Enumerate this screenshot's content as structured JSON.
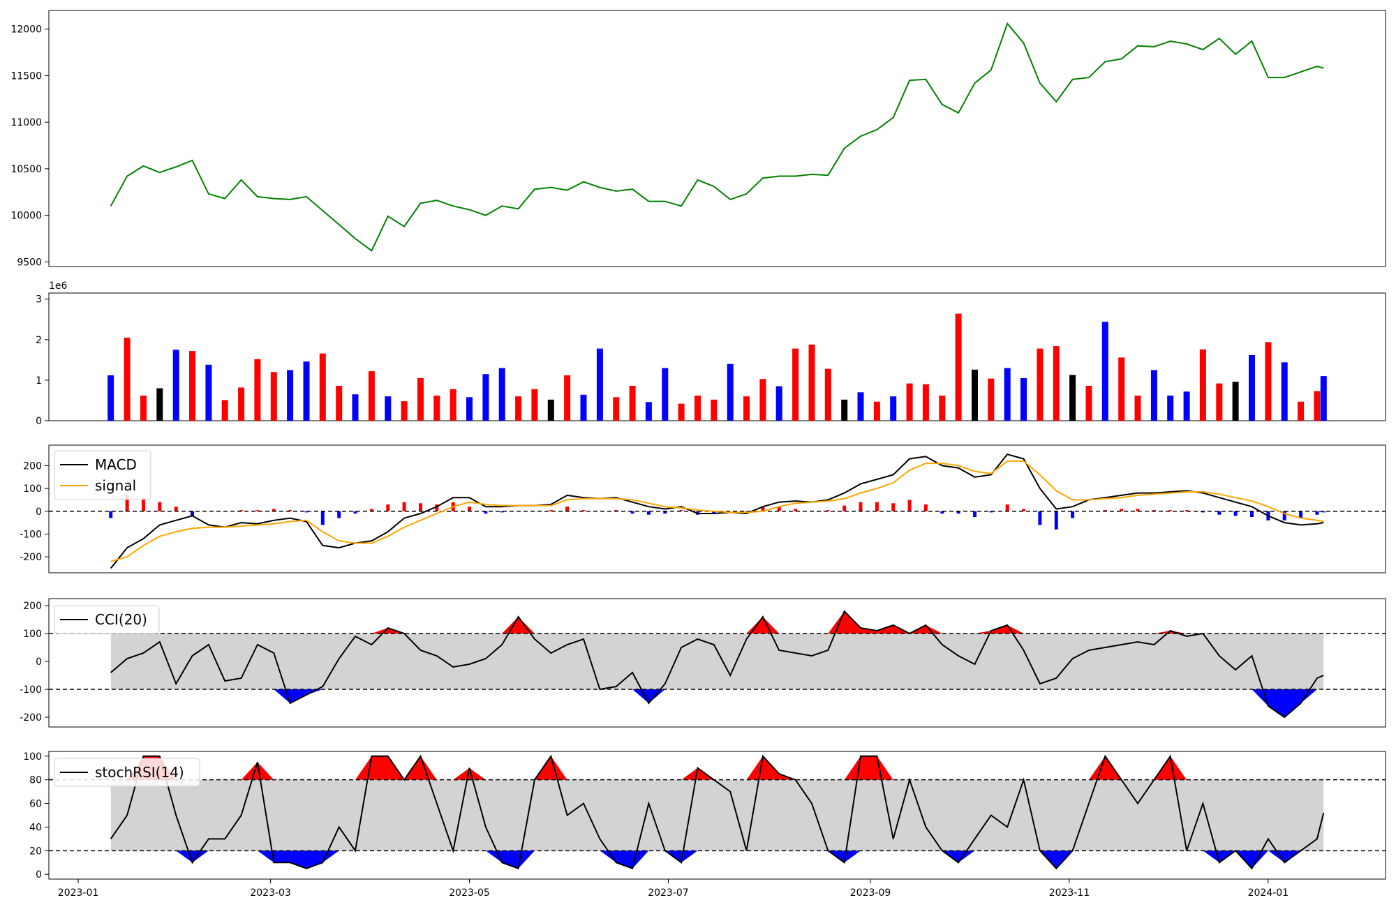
{
  "chart_data": [
    {
      "type": "line",
      "name": "price",
      "color": "#008000",
      "ylim": [
        9450,
        12200
      ],
      "yticks": [
        9500,
        10000,
        10500,
        11000,
        11500,
        12000
      ],
      "x": [
        "2023-01-11",
        "2023-01-16",
        "2023-01-21",
        "2023-01-26",
        "2023-01-31",
        "2023-02-05",
        "2023-02-10",
        "2023-02-15",
        "2023-02-20",
        "2023-02-25",
        "2023-03-02",
        "2023-03-07",
        "2023-03-12",
        "2023-03-17",
        "2023-03-22",
        "2023-03-27",
        "2023-04-01",
        "2023-04-06",
        "2023-04-11",
        "2023-04-16",
        "2023-04-21",
        "2023-04-26",
        "2023-05-01",
        "2023-05-06",
        "2023-05-11",
        "2023-05-16",
        "2023-05-21",
        "2023-05-26",
        "2023-05-31",
        "2023-06-05",
        "2023-06-10",
        "2023-06-15",
        "2023-06-20",
        "2023-06-25",
        "2023-06-30",
        "2023-07-05",
        "2023-07-10",
        "2023-07-15",
        "2023-07-20",
        "2023-07-25",
        "2023-07-30",
        "2023-08-04",
        "2023-08-09",
        "2023-08-14",
        "2023-08-19",
        "2023-08-24",
        "2023-08-29",
        "2023-09-03",
        "2023-09-08",
        "2023-09-13",
        "2023-09-18",
        "2023-09-23",
        "2023-09-28",
        "2023-10-03",
        "2023-10-08",
        "2023-10-13",
        "2023-10-18",
        "2023-10-23",
        "2023-10-28",
        "2023-11-02",
        "2023-11-07",
        "2023-11-12",
        "2023-11-17",
        "2023-11-22",
        "2023-11-27",
        "2023-12-02",
        "2023-12-07",
        "2023-12-12",
        "2023-12-17",
        "2023-12-22",
        "2023-12-27",
        "2024-01-01",
        "2024-01-06",
        "2024-01-11",
        "2024-01-16",
        "2024-01-18"
      ],
      "values": [
        10100,
        10420,
        10530,
        10460,
        10520,
        10590,
        10230,
        10180,
        10380,
        10200,
        10180,
        10170,
        10200,
        10050,
        9900,
        9750,
        9620,
        9990,
        9880,
        10130,
        10160,
        10100,
        10060,
        10000,
        10100,
        10070,
        10280,
        10300,
        10270,
        10360,
        10300,
        10260,
        10280,
        10150,
        10150,
        10100,
        10380,
        10310,
        10170,
        10230,
        10400,
        10420,
        10420,
        10440,
        10430,
        10720,
        10850,
        10920,
        11050,
        11450,
        11460,
        11190,
        11100,
        11420,
        11560,
        12060,
        11850,
        11420,
        11220,
        11460,
        11480,
        11650,
        11680,
        11820,
        11810,
        11870,
        11840,
        11780,
        11900,
        11730,
        11870,
        11480,
        11480,
        11540,
        11600,
        11580
      ]
    },
    {
      "type": "bar",
      "name": "volume",
      "colors": {
        "up": "#ff0000",
        "down": "#0000ff",
        "flat": "#000000"
      },
      "ylim": [
        0,
        3150000
      ],
      "yticks": [
        0,
        1000000,
        2000000,
        3000000
      ],
      "ytick_labels": [
        "0",
        "1",
        "2",
        "3"
      ],
      "scale_label": "1e6",
      "x": [
        "2023-01-11",
        "2023-01-16",
        "2023-01-21",
        "2023-01-26",
        "2023-01-31",
        "2023-02-05",
        "2023-02-10",
        "2023-02-15",
        "2023-02-20",
        "2023-02-25",
        "2023-03-02",
        "2023-03-07",
        "2023-03-12",
        "2023-03-17",
        "2023-03-22",
        "2023-03-27",
        "2023-04-01",
        "2023-04-06",
        "2023-04-11",
        "2023-04-16",
        "2023-04-21",
        "2023-04-26",
        "2023-05-01",
        "2023-05-06",
        "2023-05-11",
        "2023-05-16",
        "2023-05-21",
        "2023-05-26",
        "2023-05-31",
        "2023-06-05",
        "2023-06-10",
        "2023-06-15",
        "2023-06-20",
        "2023-06-25",
        "2023-06-30",
        "2023-07-05",
        "2023-07-10",
        "2023-07-15",
        "2023-07-20",
        "2023-07-25",
        "2023-07-30",
        "2023-08-04",
        "2023-08-09",
        "2023-08-14",
        "2023-08-19",
        "2023-08-24",
        "2023-08-29",
        "2023-09-03",
        "2023-09-08",
        "2023-09-13",
        "2023-09-18",
        "2023-09-23",
        "2023-09-28",
        "2023-10-03",
        "2023-10-08",
        "2023-10-13",
        "2023-10-18",
        "2023-10-23",
        "2023-10-28",
        "2023-11-02",
        "2023-11-07",
        "2023-11-12",
        "2023-11-17",
        "2023-11-22",
        "2023-11-27",
        "2023-12-02",
        "2023-12-07",
        "2023-12-12",
        "2023-12-17",
        "2023-12-22",
        "2023-12-27",
        "2024-01-01",
        "2024-01-06",
        "2024-01-11",
        "2024-01-16",
        "2024-01-18"
      ],
      "values": [
        1120000,
        2050000,
        620000,
        800000,
        1750000,
        1720000,
        1380000,
        510000,
        820000,
        1520000,
        1200000,
        1250000,
        1460000,
        1660000,
        860000,
        650000,
        1220000,
        600000,
        480000,
        1050000,
        620000,
        780000,
        580000,
        1150000,
        1300000,
        600000,
        780000,
        520000,
        1120000,
        640000,
        1780000,
        580000,
        860000,
        460000,
        1300000,
        420000,
        620000,
        520000,
        1400000,
        600000,
        1030000,
        850000,
        1780000,
        1880000,
        1280000,
        520000,
        700000,
        470000,
        600000,
        920000,
        900000,
        620000,
        2640000,
        1260000,
        1040000,
        1300000,
        1050000,
        1780000,
        1840000,
        1130000,
        860000,
        2440000,
        1560000,
        620000,
        1250000,
        620000,
        720000,
        1760000,
        920000,
        960000,
        1620000,
        1940000,
        1440000,
        470000,
        730000,
        1100000
      ],
      "directions": [
        "down",
        "up",
        "up",
        "flat",
        "down",
        "up",
        "down",
        "up",
        "up",
        "up",
        "up",
        "down",
        "down",
        "up",
        "up",
        "down",
        "up",
        "down",
        "up",
        "up",
        "up",
        "up",
        "down",
        "down",
        "down",
        "up",
        "up",
        "flat",
        "up",
        "down",
        "down",
        "up",
        "up",
        "down",
        "down",
        "up",
        "up",
        "up",
        "down",
        "up",
        "up",
        "down",
        "up",
        "up",
        "up",
        "flat",
        "down",
        "up",
        "down",
        "up",
        "up",
        "up",
        "up",
        "flat",
        "up",
        "down",
        "down",
        "up",
        "up",
        "flat",
        "up",
        "down",
        "up",
        "up",
        "down",
        "down",
        "down",
        "up",
        "up",
        "flat",
        "down",
        "up",
        "down",
        "up",
        "up",
        "down"
      ]
    },
    {
      "type": "line",
      "name": "macd",
      "ylim": [
        -270,
        290
      ],
      "yticks": [
        -200,
        -100,
        0,
        100,
        200
      ],
      "zero_line": 0,
      "series": [
        {
          "name": "MACD",
          "color": "#000000",
          "values": [
            -250,
            -160,
            -120,
            -60,
            -40,
            -20,
            -60,
            -70,
            -50,
            -55,
            -40,
            -30,
            -45,
            -150,
            -160,
            -140,
            -130,
            -90,
            -30,
            -10,
            20,
            60,
            60,
            20,
            20,
            25,
            25,
            30,
            70,
            60,
            55,
            60,
            40,
            20,
            10,
            20,
            -10,
            -10,
            -5,
            -10,
            20,
            40,
            45,
            40,
            50,
            80,
            120,
            140,
            160,
            230,
            240,
            200,
            190,
            150,
            160,
            250,
            230,
            100,
            10,
            20,
            50,
            60,
            70,
            80,
            80,
            85,
            90,
            80,
            60,
            40,
            20,
            -20,
            -50,
            -60,
            -55,
            -50
          ]
        },
        {
          "name": "signal",
          "color": "#ffa500",
          "values": [
            -220,
            -200,
            -150,
            -110,
            -90,
            -75,
            -70,
            -70,
            -65,
            -60,
            -55,
            -45,
            -40,
            -90,
            -130,
            -140,
            -140,
            -110,
            -70,
            -40,
            -10,
            20,
            40,
            30,
            25,
            25,
            25,
            25,
            50,
            55,
            55,
            55,
            50,
            35,
            20,
            15,
            5,
            0,
            -5,
            -5,
            0,
            20,
            35,
            40,
            45,
            55,
            80,
            100,
            125,
            180,
            210,
            210,
            200,
            175,
            165,
            220,
            220,
            160,
            90,
            50,
            50,
            55,
            60,
            70,
            75,
            80,
            85,
            85,
            75,
            60,
            45,
            20,
            -10,
            -30,
            -40,
            -45
          ]
        }
      ],
      "histogram": {
        "up_color": "#ff0000",
        "down_color": "#0000ff",
        "values": [
          -30,
          70,
          60,
          40,
          20,
          -20,
          0,
          0,
          5,
          5,
          10,
          5,
          -5,
          -60,
          -30,
          -10,
          10,
          30,
          40,
          35,
          30,
          40,
          20,
          -10,
          -5,
          0,
          0,
          5,
          20,
          5,
          0,
          5,
          -10,
          -15,
          -10,
          5,
          -15,
          -10,
          0,
          -5,
          20,
          20,
          10,
          0,
          5,
          25,
          40,
          40,
          35,
          50,
          30,
          -10,
          -10,
          -25,
          -5,
          30,
          10,
          -60,
          -80,
          -30,
          0,
          5,
          10,
          10,
          5,
          5,
          5,
          -5,
          -15,
          -20,
          -25,
          -40,
          -40,
          -30,
          -15,
          -5
        ]
      },
      "legend": {
        "position": "upper-left",
        "entries": [
          "MACD",
          "signal"
        ]
      }
    },
    {
      "type": "area",
      "name": "cci",
      "ylim": [
        -235,
        225
      ],
      "yticks": [
        -200,
        -100,
        0,
        100,
        200
      ],
      "thresholds": [
        -100,
        100
      ],
      "band_color": "#d3d3d3",
      "upper_fill": "#ff0000",
      "lower_fill": "#0000ff",
      "series": [
        {
          "name": "CCI(20)",
          "color": "#000000",
          "values": [
            -40,
            10,
            30,
            70,
            -80,
            20,
            60,
            -70,
            -60,
            60,
            30,
            -150,
            -120,
            -90,
            10,
            90,
            60,
            120,
            100,
            40,
            20,
            -20,
            -10,
            10,
            60,
            160,
            80,
            30,
            60,
            80,
            -100,
            -90,
            -40,
            -150,
            -80,
            50,
            80,
            60,
            -50,
            80,
            160,
            40,
            30,
            20,
            40,
            180,
            120,
            110,
            130,
            100,
            130,
            60,
            20,
            -10,
            110,
            130,
            40,
            -80,
            -60,
            10,
            40,
            50,
            60,
            70,
            60,
            110,
            90,
            100,
            20,
            -30,
            20,
            -160,
            -200,
            -150,
            -60,
            -50
          ]
        }
      ],
      "legend": {
        "position": "upper-left",
        "entries": [
          "CCI(20)"
        ]
      }
    },
    {
      "type": "area",
      "name": "stochrsi",
      "ylim": [
        -4,
        104
      ],
      "yticks": [
        0,
        20,
        40,
        60,
        80,
        100
      ],
      "thresholds": [
        20,
        80
      ],
      "band_color": "#d3d3d3",
      "upper_fill": "#ff0000",
      "lower_fill": "#0000ff",
      "series": [
        {
          "name": "stochRSI(14)",
          "color": "#000000",
          "values": [
            30,
            50,
            100,
            100,
            50,
            10,
            30,
            30,
            50,
            95,
            10,
            10,
            5,
            10,
            40,
            20,
            100,
            100,
            80,
            100,
            60,
            20,
            90,
            40,
            10,
            5,
            80,
            100,
            50,
            60,
            30,
            10,
            5,
            60,
            20,
            10,
            90,
            80,
            70,
            20,
            100,
            85,
            80,
            60,
            20,
            10,
            100,
            100,
            30,
            80,
            40,
            20,
            10,
            30,
            50,
            40,
            80,
            20,
            5,
            20,
            60,
            100,
            80,
            60,
            80,
            100,
            20,
            60,
            10,
            20,
            5,
            30,
            10,
            20,
            30,
            52
          ]
        }
      ],
      "legend": {
        "position": "upper-left",
        "entries": [
          "stochRSI(14)"
        ]
      }
    }
  ],
  "x_axis": {
    "range": [
      "2022-12-23",
      "2024-02-06"
    ],
    "ticks": [
      "2023-01",
      "2023-03",
      "2023-05",
      "2023-07",
      "2023-09",
      "2023-11",
      "2024-01"
    ]
  }
}
